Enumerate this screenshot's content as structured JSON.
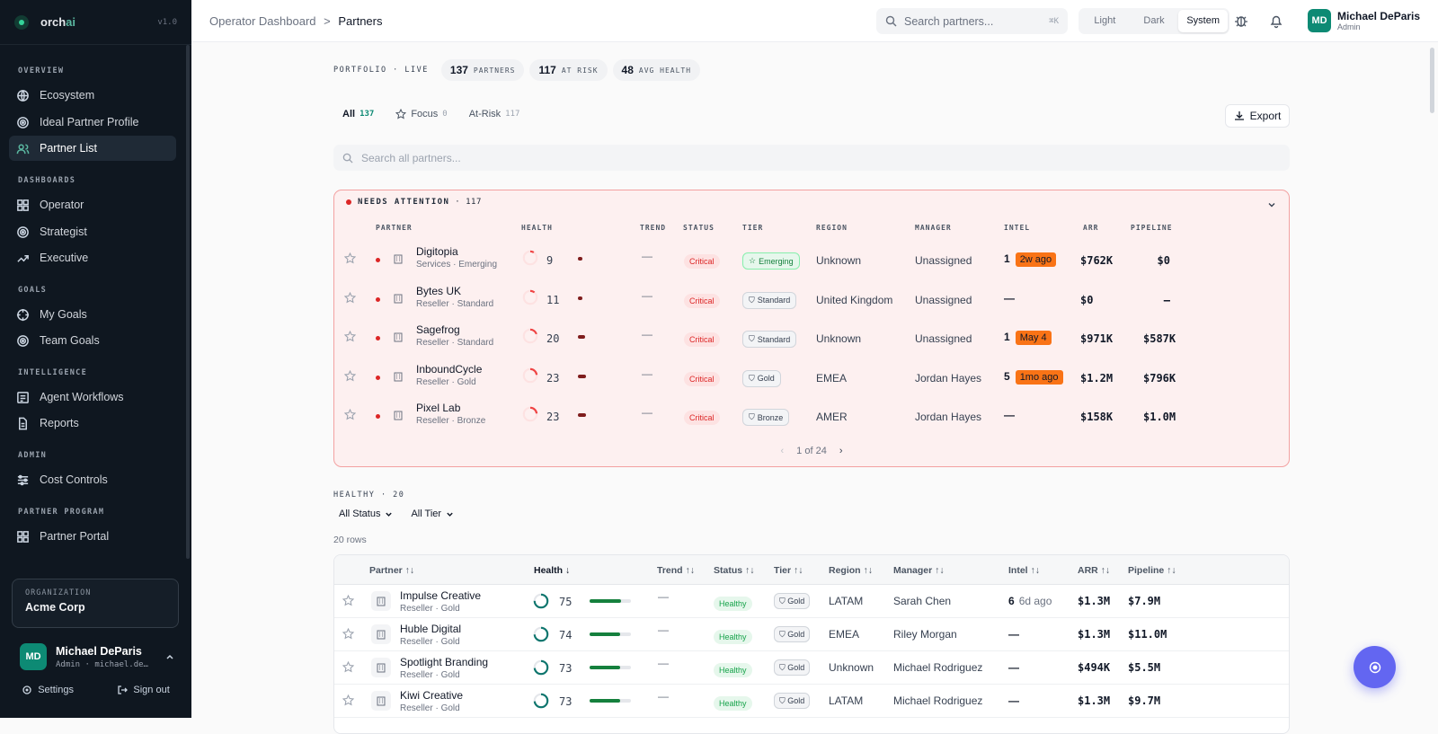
{
  "sidebar": {
    "brand": "orch",
    "brand_accent": "ai",
    "version": "v1.0",
    "sections": [
      {
        "label": "OVERVIEW",
        "items": [
          {
            "label": "Ecosystem",
            "icon": "globe-icon"
          },
          {
            "label": "Ideal Partner Profile",
            "icon": "target-icon"
          },
          {
            "label": "Partner List",
            "icon": "users-icon",
            "active": true
          }
        ]
      },
      {
        "label": "DASHBOARDS",
        "items": [
          {
            "label": "Operator",
            "icon": "grid-icon"
          },
          {
            "label": "Strategist",
            "icon": "target-icon"
          },
          {
            "label": "Executive",
            "icon": "trend-up-icon"
          }
        ]
      },
      {
        "label": "GOALS",
        "items": [
          {
            "label": "My Goals",
            "icon": "crosshair-icon"
          },
          {
            "label": "Team Goals",
            "icon": "target-icon"
          }
        ]
      },
      {
        "label": "INTELLIGENCE",
        "items": [
          {
            "label": "Agent Workflows",
            "icon": "workflow-icon"
          },
          {
            "label": "Reports",
            "icon": "file-icon"
          }
        ]
      },
      {
        "label": "ADMIN",
        "items": [
          {
            "label": "Cost Controls",
            "icon": "sliders-icon"
          }
        ]
      },
      {
        "label": "PARTNER PROGRAM",
        "items": [
          {
            "label": "Partner Portal",
            "icon": "grid-icon"
          }
        ]
      }
    ],
    "org_label": "ORGANIZATION",
    "org_name": "Acme Corp",
    "user_initials": "MD",
    "user_name": "Michael DeParis",
    "user_meta": "Admin · michael.de…",
    "settings": "Settings",
    "signout": "Sign out"
  },
  "topbar": {
    "crumb_root": "Operator Dashboard",
    "crumb_sep": ">",
    "crumb_current": "Partners",
    "search_placeholder": "Search partners...",
    "shortcut": "⌘K",
    "themes": [
      "Light",
      "Dark",
      "System"
    ],
    "active_theme": "System",
    "user_initials": "MD",
    "user_name": "Michael DeParis",
    "user_role": "Admin"
  },
  "stats": {
    "label": "PORTFOLIO · LIVE",
    "items": [
      {
        "value": "137",
        "label": "PARTNERS"
      },
      {
        "value": "117",
        "label": "AT RISK"
      },
      {
        "value": "48",
        "label": "AVG HEALTH"
      }
    ]
  },
  "tabs": [
    {
      "label": "All",
      "count": "137"
    },
    {
      "label": "Focus",
      "count": "0"
    },
    {
      "label": "At-Risk",
      "count": "117"
    }
  ],
  "export_label": "Export",
  "search_all_placeholder": "Search all partners...",
  "attention": {
    "title": "NEEDS ATTENTION",
    "count": "· 117",
    "columns": [
      "PARTNER",
      "HEALTH",
      "TREND",
      "STATUS",
      "TIER",
      "REGION",
      "MANAGER",
      "INTEL",
      "ARR",
      "PIPELINE"
    ],
    "rows": [
      {
        "name": "Digitopia",
        "sub": "Services · Emerging",
        "health": "9",
        "health_pct": 0.09,
        "trend": "—",
        "status": "Critical",
        "tier": "Emerging",
        "region": "Unknown",
        "manager": "Unassigned",
        "intel": "1",
        "intel_tag": "2w ago",
        "arr": "$762K",
        "pipeline": "$0"
      },
      {
        "name": "Bytes UK",
        "sub": "Reseller · Standard",
        "health": "11",
        "health_pct": 0.11,
        "trend": "—",
        "status": "Critical",
        "tier": "Standard",
        "region": "United Kingdom",
        "manager": "Unassigned",
        "intel": "—",
        "intel_tag": "",
        "arr": "$0",
        "pipeline": "–"
      },
      {
        "name": "Sagefrog",
        "sub": "Reseller · Standard",
        "health": "20",
        "health_pct": 0.2,
        "trend": "—",
        "status": "Critical",
        "tier": "Standard",
        "region": "Unknown",
        "manager": "Unassigned",
        "intel": "1",
        "intel_tag": "May 4",
        "arr": "$971K",
        "pipeline": "$587K"
      },
      {
        "name": "InboundCycle",
        "sub": "Reseller · Gold",
        "health": "23",
        "health_pct": 0.23,
        "trend": "—",
        "status": "Critical",
        "tier": "Gold",
        "region": "EMEA",
        "manager": "Jordan Hayes",
        "intel": "5",
        "intel_tag": "1mo ago",
        "arr": "$1.2M",
        "pipeline": "$796K"
      },
      {
        "name": "Pixel Lab",
        "sub": "Reseller · Bronze",
        "health": "23",
        "health_pct": 0.23,
        "trend": "—",
        "status": "Critical",
        "tier": "Bronze",
        "region": "AMER",
        "manager": "Jordan Hayes",
        "intel": "—",
        "intel_tag": "",
        "arr": "$158K",
        "pipeline": "$1.0M"
      }
    ],
    "page": "1 of 24"
  },
  "healthy": {
    "title": "HEALTHY · 20",
    "filters": [
      "All Status",
      "All Tier"
    ],
    "row_count": "20 rows",
    "columns": [
      "Partner ↑↓",
      "Health ↓",
      "Trend ↑↓",
      "Status ↑↓",
      "Tier ↑↓",
      "Region ↑↓",
      "Manager ↑↓",
      "Intel ↑↓",
      "ARR ↑↓",
      "Pipeline ↑↓"
    ],
    "rows": [
      {
        "name": "Impulse Creative",
        "sub": "Reseller · Gold",
        "health": "75",
        "health_pct": 0.75,
        "trend": "—",
        "status": "Healthy",
        "tier": "Gold",
        "region": "LATAM",
        "manager": "Sarah Chen",
        "intel": "6",
        "intel_tag": "6d ago",
        "arr": "$1.3M",
        "pipeline": "$7.9M"
      },
      {
        "name": "Huble Digital",
        "sub": "Reseller · Gold",
        "health": "74",
        "health_pct": 0.74,
        "trend": "—",
        "status": "Healthy",
        "tier": "Gold",
        "region": "EMEA",
        "manager": "Riley Morgan",
        "intel": "—",
        "intel_tag": "",
        "arr": "$1.3M",
        "pipeline": "$11.0M"
      },
      {
        "name": "Spotlight Branding",
        "sub": "Reseller · Gold",
        "health": "73",
        "health_pct": 0.73,
        "trend": "—",
        "status": "Healthy",
        "tier": "Gold",
        "region": "Unknown",
        "manager": "Michael Rodriguez",
        "intel": "—",
        "intel_tag": "",
        "arr": "$494K",
        "pipeline": "$5.5M"
      },
      {
        "name": "Kiwi Creative",
        "sub": "Reseller · Gold",
        "health": "73",
        "health_pct": 0.73,
        "trend": "—",
        "status": "Healthy",
        "tier": "Gold",
        "region": "LATAM",
        "manager": "Michael Rodriguez",
        "intel": "—",
        "intel_tag": "",
        "arr": "$1.3M",
        "pipeline": "$9.7M"
      }
    ]
  },
  "colors": {
    "accent": "#0d8a74",
    "critical": "#dc2626",
    "healthy": "#16a34a",
    "intel_tag": "#f97316",
    "fab": "#6366f1"
  }
}
